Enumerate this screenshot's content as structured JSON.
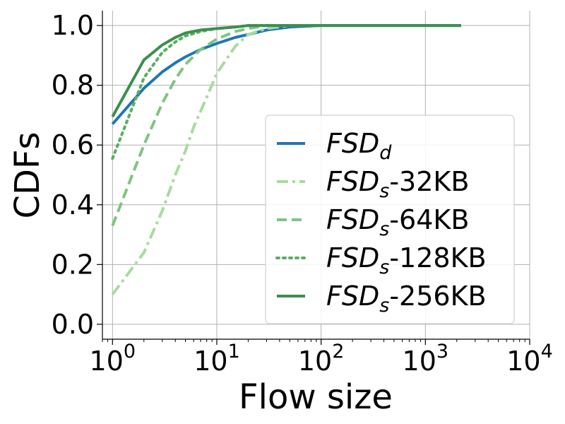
{
  "chart_data": {
    "type": "line",
    "xlabel": "Flow size",
    "ylabel": "CDFs",
    "xscale": "log",
    "xlim": [
      0.8,
      10000
    ],
    "ylim": [
      -0.05,
      1.05
    ],
    "grid": true,
    "legend_position": "lower-right",
    "x_ticks": [
      {
        "base": "10",
        "exp": "0",
        "value": 1
      },
      {
        "base": "10",
        "exp": "1",
        "value": 10
      },
      {
        "base": "10",
        "exp": "2",
        "value": 100
      },
      {
        "base": "10",
        "exp": "3",
        "value": 1000
      },
      {
        "base": "10",
        "exp": "4",
        "value": 10000
      }
    ],
    "y_ticks": [
      {
        "label": "0.0",
        "value": 0.0
      },
      {
        "label": "0.2",
        "value": 0.2
      },
      {
        "label": "0.4",
        "value": 0.4
      },
      {
        "label": "0.6",
        "value": 0.6
      },
      {
        "label": "0.8",
        "value": 0.8
      },
      {
        "label": "1.0",
        "value": 1.0
      }
    ],
    "series": [
      {
        "name": "FSD_d",
        "name_main": "FSD",
        "name_sub": "d",
        "name_suffix": "",
        "color": "#1f77b4",
        "dash": "solid",
        "x": [
          1,
          2,
          3,
          4,
          5,
          7,
          10,
          15,
          20,
          30,
          50,
          100,
          200,
          500,
          1000,
          2200
        ],
        "y": [
          0.67,
          0.79,
          0.845,
          0.875,
          0.895,
          0.92,
          0.94,
          0.96,
          0.97,
          0.985,
          0.995,
          1.0,
          1.0,
          1.0,
          1.0,
          1.0
        ]
      },
      {
        "name": "FSD_s-32KB",
        "name_main": "FSD",
        "name_sub": "s",
        "name_suffix": "-32KB",
        "color": "#a8dba0",
        "dash": "dashdot",
        "x": [
          1,
          2,
          3,
          4,
          5,
          6,
          8,
          10,
          15,
          20,
          30,
          50,
          100
        ],
        "y": [
          0.1,
          0.24,
          0.38,
          0.5,
          0.58,
          0.66,
          0.76,
          0.84,
          0.93,
          0.97,
          0.99,
          1.0,
          1.0
        ]
      },
      {
        "name": "FSD_s-64KB",
        "name_main": "FSD",
        "name_sub": "s",
        "name_suffix": "-64KB",
        "color": "#7fc57f",
        "dash": "dashed",
        "x": [
          1,
          2,
          3,
          4,
          5,
          7,
          10,
          15,
          20,
          30,
          50,
          100
        ],
        "y": [
          0.33,
          0.6,
          0.74,
          0.82,
          0.87,
          0.92,
          0.955,
          0.98,
          0.99,
          1.0,
          1.0,
          1.0
        ]
      },
      {
        "name": "FSD_s-128KB",
        "name_main": "FSD",
        "name_sub": "s",
        "name_suffix": "-128KB",
        "color": "#5aae61",
        "dash": "dotted",
        "x": [
          1,
          2,
          3,
          4,
          5,
          7,
          10,
          15,
          20,
          30,
          50,
          100
        ],
        "y": [
          0.555,
          0.825,
          0.91,
          0.945,
          0.965,
          0.98,
          0.99,
          0.995,
          1.0,
          1.0,
          1.0,
          1.0
        ]
      },
      {
        "name": "FSD_s-256KB",
        "name_main": "FSD",
        "name_sub": "s",
        "name_suffix": "-256KB",
        "color": "#3b8f4f",
        "dash": "solid",
        "x": [
          1,
          2,
          3,
          4,
          5,
          7,
          10,
          15,
          20,
          30,
          50,
          100,
          200,
          500,
          1000,
          2200
        ],
        "y": [
          0.695,
          0.885,
          0.935,
          0.96,
          0.975,
          0.985,
          0.99,
          0.995,
          1.0,
          1.0,
          1.0,
          1.0,
          1.0,
          1.0,
          1.0,
          1.0
        ]
      }
    ]
  }
}
